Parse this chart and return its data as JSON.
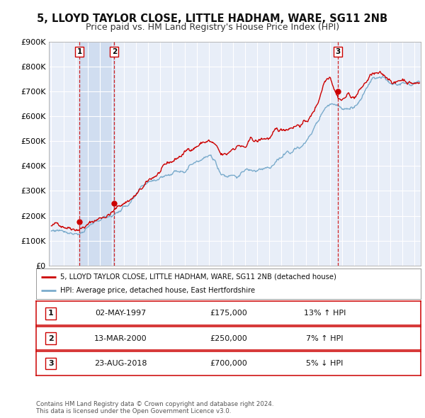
{
  "title": "5, LLOYD TAYLOR CLOSE, LITTLE HADHAM, WARE, SG11 2NB",
  "subtitle": "Price paid vs. HM Land Registry's House Price Index (HPI)",
  "title_fontsize": 10.5,
  "subtitle_fontsize": 9,
  "background_color": "#ffffff",
  "plot_bg_color": "#e8eef8",
  "grid_color": "#ffffff",
  "red_line_color": "#cc0000",
  "blue_line_color": "#7aabcc",
  "sale_marker_color": "#cc0000",
  "ylim": [
    0,
    900000
  ],
  "yticks": [
    0,
    100000,
    200000,
    300000,
    400000,
    500000,
    600000,
    700000,
    800000,
    900000
  ],
  "ytick_labels": [
    "£0",
    "£100K",
    "£200K",
    "£300K",
    "£400K",
    "£500K",
    "£600K",
    "£700K",
    "£800K",
    "£900K"
  ],
  "xlim_start": 1994.8,
  "xlim_end": 2025.5,
  "xticks": [
    1995,
    1996,
    1997,
    1998,
    1999,
    2000,
    2001,
    2002,
    2003,
    2004,
    2005,
    2006,
    2007,
    2008,
    2009,
    2010,
    2011,
    2012,
    2013,
    2014,
    2015,
    2016,
    2017,
    2018,
    2019,
    2020,
    2021,
    2022,
    2023,
    2024,
    2025
  ],
  "sale_dates": [
    1997.33,
    2000.2,
    2018.64
  ],
  "sale_prices": [
    175000,
    250000,
    700000
  ],
  "sale_labels": [
    "1",
    "2",
    "3"
  ],
  "legend_red_label": "5, LLOYD TAYLOR CLOSE, LITTLE HADHAM, WARE, SG11 2NB (detached house)",
  "legend_blue_label": "HPI: Average price, detached house, East Hertfordshire",
  "table_rows": [
    {
      "num": "1",
      "date": "02-MAY-1997",
      "price": "£175,000",
      "hpi": "13% ↑ HPI"
    },
    {
      "num": "2",
      "date": "13-MAR-2000",
      "price": "£250,000",
      "hpi": "7% ↑ HPI"
    },
    {
      "num": "3",
      "date": "23-AUG-2018",
      "price": "£700,000",
      "hpi": "5% ↓ HPI"
    }
  ],
  "footnote": "Contains HM Land Registry data © Crown copyright and database right 2024.\nThis data is licensed under the Open Government Licence v3.0.",
  "shaded_region_color": "#d0ddf0",
  "shaded_regions": [
    [
      1997.33,
      2000.2
    ]
  ]
}
